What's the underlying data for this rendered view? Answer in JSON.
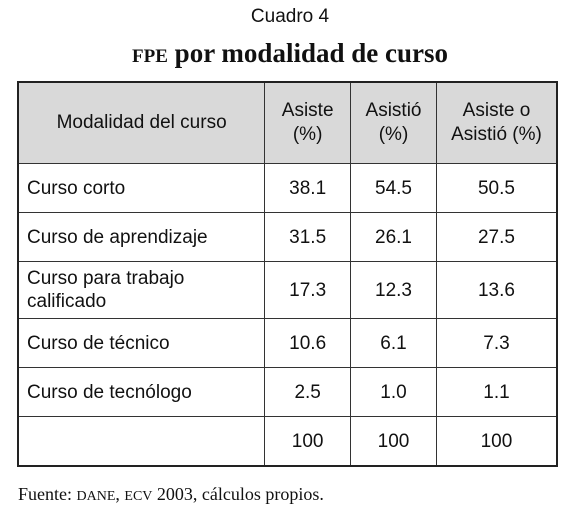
{
  "caption": "Cuadro 4",
  "title": {
    "abbr": "FPE",
    "rest": "por modalidad de curso"
  },
  "table": {
    "headers": [
      "Modalidad del curso",
      "Asiste (%)",
      "Asistió (%)",
      "Asiste o Asistió (%)"
    ],
    "rows": [
      {
        "label": "Curso corto",
        "asiste": "38.1",
        "asistio": "54.5",
        "ambos": "50.5"
      },
      {
        "label": "Curso de aprendizaje",
        "asiste": "31.5",
        "asistio": "26.1",
        "ambos": "27.5"
      },
      {
        "label": "Curso para trabajo calificado",
        "asiste": "17.3",
        "asistio": "12.3",
        "ambos": "13.6"
      },
      {
        "label": "Curso de técnico",
        "asiste": "10.6",
        "asistio": "6.1",
        "ambos": "7.3"
      },
      {
        "label": "Curso de tecnólogo",
        "asiste": "2.5",
        "asistio": "1.0",
        "ambos": "1.1"
      },
      {
        "label": "",
        "asiste": "100",
        "asistio": "100",
        "ambos": "100"
      }
    ]
  },
  "source": {
    "prefix": "Fuente: ",
    "org1": "DANE",
    "sep": ", ",
    "org2": "ECV",
    "rest": " 2003, cálculos propios."
  }
}
